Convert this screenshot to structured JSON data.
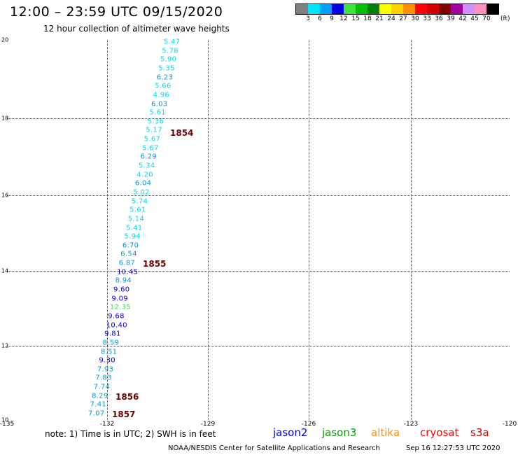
{
  "header": {
    "title": "12:00 – 23:59 UTC 09/15/2020",
    "subtitle": "12 hour collection of altimeter wave heights"
  },
  "colorbar": {
    "colors": [
      "#7f7f7f",
      "#00e5ff",
      "#00a0ff",
      "#0000e0",
      "#40e040",
      "#00c000",
      "#008000",
      "#ffff00",
      "#ffd000",
      "#ff9000",
      "#ff0000",
      "#d00000",
      "#800000",
      "#a000a0",
      "#d090ff",
      "#ff90c0",
      "#000000"
    ],
    "labels": [
      "3",
      "6",
      "9",
      "12",
      "15",
      "18",
      "21",
      "24",
      "27",
      "30",
      "33",
      "36",
      "39",
      "42",
      "45",
      "70"
    ],
    "unit": "(ft)"
  },
  "axes": {
    "lat_labels": [
      "20",
      "18",
      "16",
      "14",
      "12",
      "10"
    ],
    "lon_labels": [
      "-135",
      "-132",
      "-129",
      "-126",
      "-123",
      "-120"
    ]
  },
  "wave_heights": [
    {
      "v": "5.47",
      "c": "#00d8e8"
    },
    {
      "v": "5.78",
      "c": "#00d8e8"
    },
    {
      "v": "5.90",
      "c": "#00d8e8"
    },
    {
      "v": "5.35",
      "c": "#00d8e8"
    },
    {
      "v": "6.23",
      "c": "#0098d0"
    },
    {
      "v": "5.66",
      "c": "#00d8e8"
    },
    {
      "v": "4.96",
      "c": "#00d8e8"
    },
    {
      "v": "6.03",
      "c": "#0098d0"
    },
    {
      "v": "5.61",
      "c": "#00d8e8"
    },
    {
      "v": "5.36",
      "c": "#00d8e8"
    },
    {
      "v": "5.17",
      "c": "#00d8e8"
    },
    {
      "v": "5.67",
      "c": "#00d8e8"
    },
    {
      "v": "5.67",
      "c": "#00d8e8"
    },
    {
      "v": "6.29",
      "c": "#0098d0"
    },
    {
      "v": "5.34",
      "c": "#00d8e8"
    },
    {
      "v": "4.20",
      "c": "#00d8e8"
    },
    {
      "v": "6.04",
      "c": "#0098d0"
    },
    {
      "v": "5.02",
      "c": "#00d8e8"
    },
    {
      "v": "5.74",
      "c": "#00d8e8"
    },
    {
      "v": "5.61",
      "c": "#00d8e8"
    },
    {
      "v": "5.14",
      "c": "#00d8e8"
    },
    {
      "v": "5.41",
      "c": "#00d8e8"
    },
    {
      "v": "5.94",
      "c": "#00d8e8"
    },
    {
      "v": "6.70",
      "c": "#0098d0"
    },
    {
      "v": "6.54",
      "c": "#0098d0"
    },
    {
      "v": "6.87",
      "c": "#0098d0"
    },
    {
      "v": "10.45",
      "c": "#0000d0"
    },
    {
      "v": "8.94",
      "c": "#0098d0"
    },
    {
      "v": "9.60",
      "c": "#0000d0"
    },
    {
      "v": "9.09",
      "c": "#0000d0"
    },
    {
      "v": "12.35",
      "c": "#40e040"
    },
    {
      "v": "9.68",
      "c": "#0000d0"
    },
    {
      "v": "10.40",
      "c": "#0000d0"
    },
    {
      "v": "9.81",
      "c": "#0000d0"
    },
    {
      "v": "8.59",
      "c": "#0098d0"
    },
    {
      "v": "8.51",
      "c": "#0098d0"
    },
    {
      "v": "9.30",
      "c": "#0000d0"
    },
    {
      "v": "7.93",
      "c": "#0098d0"
    },
    {
      "v": "7.83",
      "c": "#0098d0"
    },
    {
      "v": "7.74",
      "c": "#0098d0"
    },
    {
      "v": "8.29",
      "c": "#0098d0"
    },
    {
      "v": "7.41",
      "c": "#0098d0"
    },
    {
      "v": "7.07",
      "c": "#0098d0"
    }
  ],
  "hour_marks": [
    "1854",
    "1855",
    "1856",
    "1857"
  ],
  "footer": {
    "note": "note:  1) Time is in UTC;  2) SWH is in feet",
    "satellites": [
      {
        "name": "jason2",
        "color": "#0000e0"
      },
      {
        "name": "jason3",
        "color": "#00a000"
      },
      {
        "name": "altika",
        "color": "#ff9000"
      },
      {
        "name": "cryosat",
        "color": "#ff0000"
      },
      {
        "name": "s3a",
        "color": "#c00000"
      }
    ],
    "source": "NOAA/NESDIS Center for Satellite Applications and Research",
    "timestamp": "Sep 16 12:27:53 UTC 2020"
  }
}
